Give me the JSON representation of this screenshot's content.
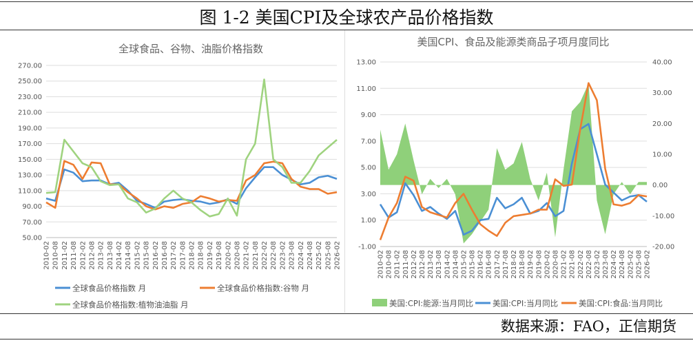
{
  "header": {
    "title": "图 1-2 美国CPI及全球农产品价格指数"
  },
  "footer": {
    "source": "数据来源：FAO，正信期货"
  },
  "chart_data": [
    {
      "type": "line",
      "title": "全球食品、谷物、油脂价格指数",
      "categories": [
        "2010-02",
        "2010-08",
        "2011-02",
        "2011-08",
        "2012-02",
        "2012-08",
        "2013-02",
        "2013-08",
        "2014-02",
        "2014-08",
        "2015-02",
        "2015-08",
        "2016-02",
        "2016-08",
        "2017-02",
        "2017-08",
        "2018-02",
        "2018-08",
        "2019-02",
        "2019-08",
        "2020-02",
        "2020-08",
        "2021-02",
        "2021-08",
        "2022-02",
        "2022-08",
        "2023-02",
        "2023-08",
        "2024-02",
        "2024-08",
        "2025-02",
        "2025-08",
        "2026-02"
      ],
      "ylim": [
        50,
        270
      ],
      "yticks": [
        "50.00",
        "70.00",
        "90.00",
        "110.00",
        "130.00",
        "150.00",
        "170.00",
        "190.00",
        "210.00",
        "230.00",
        "250.00",
        "270.00"
      ],
      "series": [
        {
          "name": "全球食品价格指数 月",
          "color": "#4a8fd4",
          "values": [
            100,
            97,
            137,
            133,
            122,
            123,
            123,
            118,
            120,
            110,
            97,
            93,
            88,
            96,
            98,
            99,
            97,
            96,
            93,
            95,
            99,
            93,
            113,
            127,
            140,
            140,
            130,
            124,
            118,
            120,
            127,
            129,
            125
          ]
        },
        {
          "name": "全球食品价格指数:谷物 月",
          "color": "#ed7d31",
          "values": [
            95,
            88,
            148,
            143,
            125,
            146,
            145,
            118,
            118,
            108,
            100,
            90,
            86,
            90,
            88,
            93,
            95,
            103,
            100,
            96,
            98,
            97,
            123,
            130,
            145,
            147,
            145,
            125,
            115,
            112,
            112,
            106,
            108
          ]
        },
        {
          "name": "全球食品价格指数:植物油油脂 月",
          "color": "#9fd37f",
          "values": [
            107,
            108,
            175,
            160,
            145,
            140,
            122,
            117,
            118,
            100,
            95,
            82,
            87,
            100,
            110,
            100,
            95,
            85,
            77,
            80,
            100,
            78,
            150,
            170,
            252,
            150,
            140,
            120,
            120,
            135,
            155,
            165,
            175
          ]
        }
      ]
    },
    {
      "type": "line+area",
      "title": "美国CPI、食品及能源类商品子项月度同比",
      "categories": [
        "2010-02",
        "2010-08",
        "2011-02",
        "2011-08",
        "2012-02",
        "2012-08",
        "2013-02",
        "2013-08",
        "2014-02",
        "2014-08",
        "2015-02",
        "2015-08",
        "2016-02",
        "2016-08",
        "2017-02",
        "2017-08",
        "2018-02",
        "2018-08",
        "2019-02",
        "2019-08",
        "2020-02",
        "2020-08",
        "2021-02",
        "2021-08",
        "2022-02",
        "2022-08",
        "2023-02",
        "2023-08",
        "2024-02",
        "2024-08",
        "2025-02",
        "2025-08",
        "2026-02"
      ],
      "ylim": [
        -1,
        13
      ],
      "yticks": [
        "-1.00",
        "1.00",
        "3.00",
        "5.00",
        "7.00",
        "9.00",
        "11.00",
        "13.00"
      ],
      "y2lim": [
        -20,
        40
      ],
      "y2ticks": [
        "-20.00",
        "-10.00",
        "0.00",
        "10.00",
        "20.00",
        "30.00",
        "40.00"
      ],
      "series": [
        {
          "name": "美国:CPI:能源:当月同比",
          "type": "area",
          "axis": "right",
          "color": "#8fd07a",
          "values": [
            18,
            5,
            10,
            20,
            8,
            -3,
            2,
            -1,
            2,
            -3,
            -19,
            -16,
            -12,
            -8,
            12,
            5,
            7,
            14,
            2,
            -5,
            4,
            -17,
            5,
            24,
            27,
            33,
            -5,
            -16,
            -3,
            1,
            -3,
            1,
            1
          ]
        },
        {
          "name": "美国:CPI:当月同比",
          "type": "line",
          "axis": "left",
          "color": "#4a8fd4",
          "values": [
            2.2,
            1.2,
            1.6,
            3.8,
            2.9,
            1.7,
            2.0,
            1.5,
            1.1,
            1.7,
            -0.1,
            0.2,
            1.0,
            1.1,
            2.7,
            1.9,
            2.2,
            2.7,
            1.5,
            1.7,
            2.3,
            1.3,
            1.7,
            5.3,
            7.9,
            8.3,
            6.0,
            3.7,
            3.1,
            2.5,
            2.8,
            2.9,
            2.4
          ]
        },
        {
          "name": "美国:CPI:食品:当月同比",
          "type": "line",
          "axis": "left",
          "color": "#ed7d31",
          "values": [
            -0.5,
            1.2,
            2.3,
            4.3,
            4.0,
            2.0,
            1.6,
            1.4,
            1.2,
            2.3,
            3.0,
            1.8,
            0.7,
            0.2,
            -0.2,
            0.8,
            1.3,
            1.4,
            1.5,
            1.8,
            1.8,
            4.1,
            3.6,
            3.7,
            7.9,
            11.4,
            10.1,
            4.9,
            2.2,
            2.1,
            2.3,
            2.9,
            2.8
          ]
        }
      ]
    }
  ]
}
